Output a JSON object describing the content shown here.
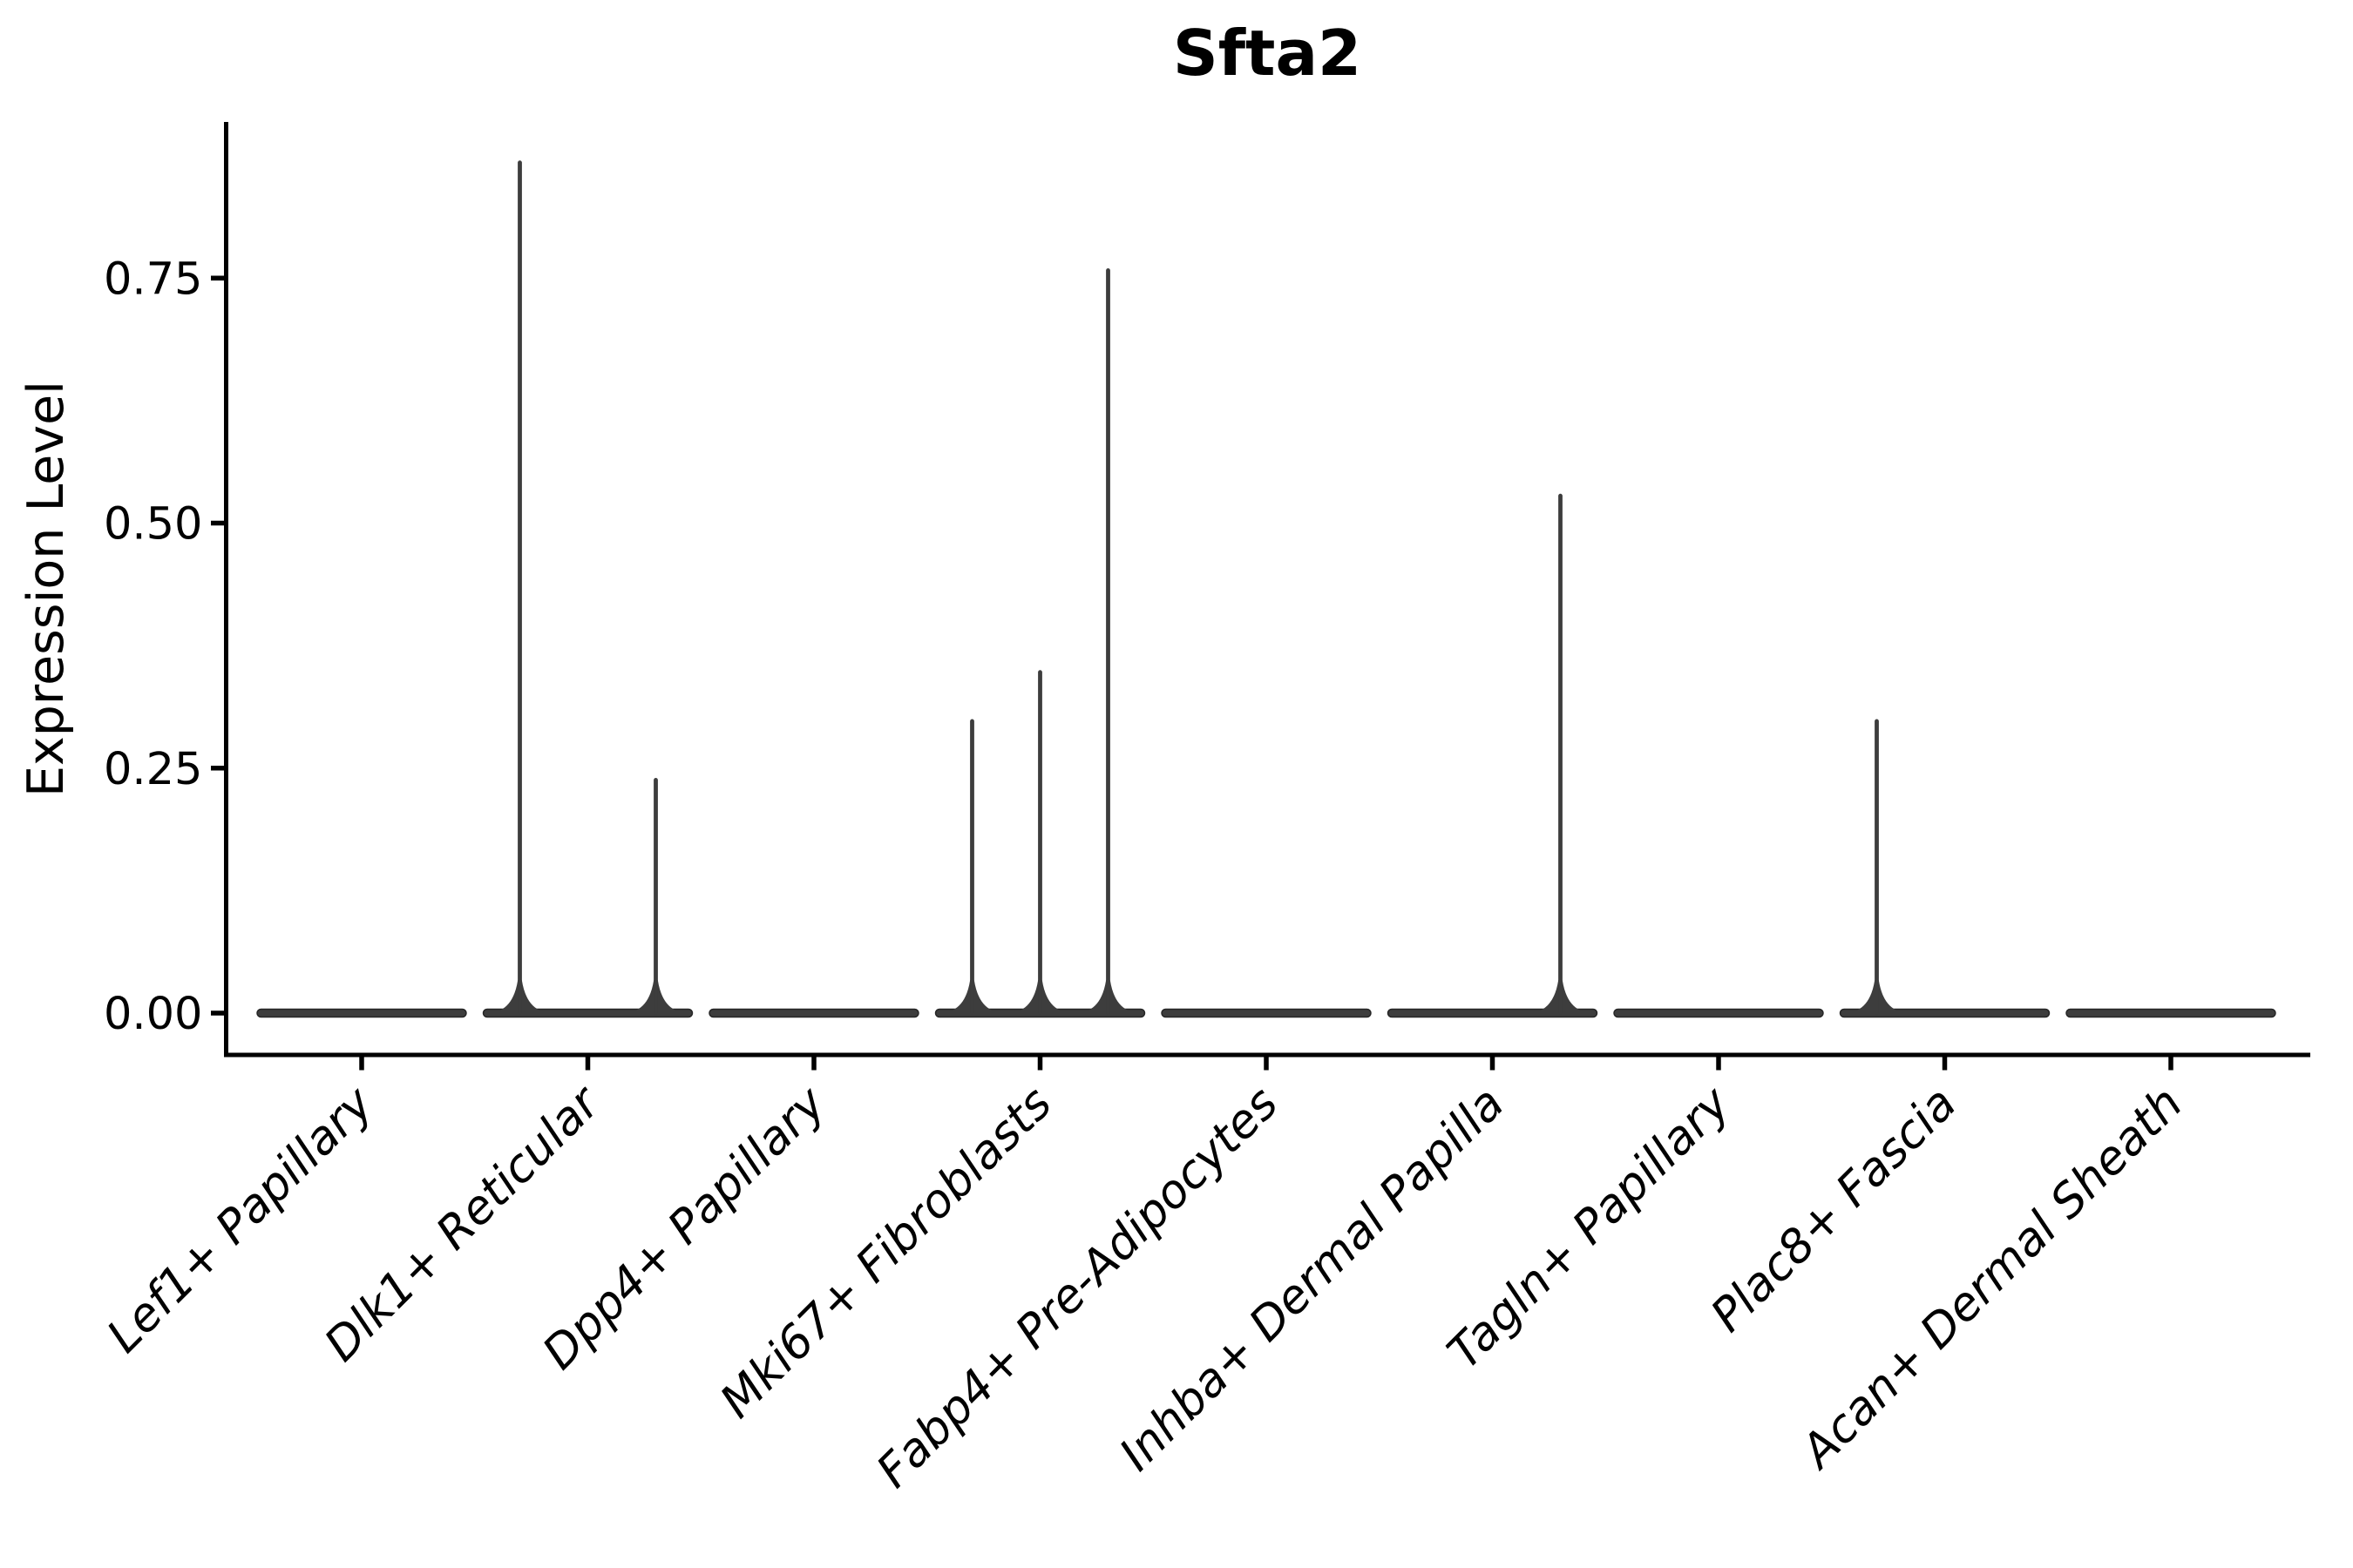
{
  "chart_data": {
    "type": "violin",
    "title": "Sfta2",
    "xlabel": "",
    "ylabel": "Expression Level",
    "grid": false,
    "legend": "none",
    "background_color": "#ffffff",
    "axis_color": "#000000",
    "violin_fill_color": "#3d3d3d",
    "violin_edge_color": "#262626",
    "ylim": [
      -0.04,
      0.91
    ],
    "yticks": [
      {
        "value": 0.0,
        "label": "0.00"
      },
      {
        "value": 0.25,
        "label": "0.25"
      },
      {
        "value": 0.5,
        "label": "0.50"
      },
      {
        "value": 0.75,
        "label": "0.75"
      }
    ],
    "xtick_rotation": 45,
    "xtick_style": "italic",
    "categories": [
      "Lef1+ Papillary",
      "Dlk1+ Reticular",
      "Dpp4+ Papillary",
      "Mki67+ Fibroblasts",
      "Fabp4+ Pre-Adipocytes",
      "Inhba+ Dermal Papilla",
      "Tagln+ Papillary",
      "Plac8+ Fascia",
      "Acan+ Dermal Sheath"
    ],
    "violins": [
      {
        "category": "Lef1+ Papillary",
        "baseline_value": 0,
        "spikes": []
      },
      {
        "category": "Dlk1+ Reticular",
        "baseline_value": 0,
        "spikes": [
          {
            "slot": -1,
            "value": 0.87
          },
          {
            "slot": 1,
            "value": 0.24
          }
        ]
      },
      {
        "category": "Dpp4+ Papillary",
        "baseline_value": 0,
        "spikes": []
      },
      {
        "category": "Mki67+ Fibroblasts",
        "baseline_value": 0,
        "spikes": [
          {
            "slot": -1,
            "value": 0.3
          },
          {
            "slot": 0,
            "value": 0.35
          },
          {
            "slot": 1,
            "value": 0.76
          }
        ]
      },
      {
        "category": "Fabp4+ Pre-Adipocytes",
        "baseline_value": 0,
        "spikes": []
      },
      {
        "category": "Inhba+ Dermal Papilla",
        "baseline_value": 0,
        "spikes": [
          {
            "slot": 1,
            "value": 0.53
          }
        ]
      },
      {
        "category": "Tagln+ Papillary",
        "baseline_value": 0,
        "spikes": []
      },
      {
        "category": "Plac8+ Fascia",
        "baseline_value": 0,
        "spikes": [
          {
            "slot": -1,
            "value": 0.3
          }
        ]
      },
      {
        "category": "Acan+ Dermal Sheath",
        "baseline_value": 0,
        "spikes": []
      }
    ]
  }
}
